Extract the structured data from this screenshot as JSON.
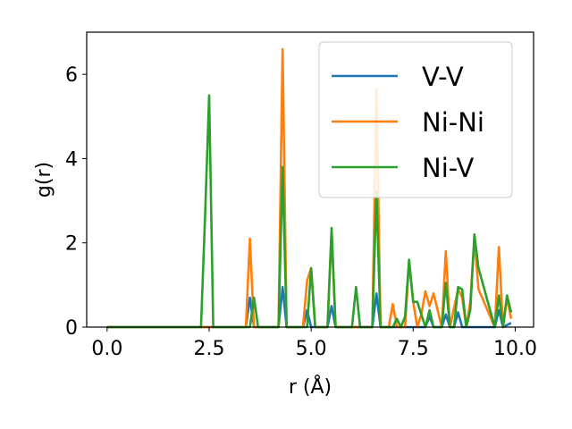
{
  "chart_data": {
    "type": "line",
    "title": "",
    "xlabel": "r (Å)",
    "ylabel": "g(r)",
    "xlim": [
      -0.5,
      10.45
    ],
    "ylim": [
      0,
      7.0
    ],
    "xticks": [
      0.0,
      2.5,
      5.0,
      7.5,
      10.0
    ],
    "xtick_labels": [
      "0.0",
      "2.5",
      "5.0",
      "7.5",
      "10.0"
    ],
    "yticks": [
      0,
      2,
      4,
      6
    ],
    "ytick_labels": [
      "0",
      "2",
      "4",
      "6"
    ],
    "grid": false,
    "legend": "top-right",
    "series": [
      {
        "name": "V-V",
        "color": "#1f77b4",
        "x": [
          0,
          3.4,
          3.5,
          3.6,
          4.2,
          4.3,
          4.4,
          4.8,
          4.9,
          5.0,
          5.4,
          5.5,
          5.6,
          6.5,
          6.6,
          6.7,
          7.8,
          7.9,
          8.0,
          8.2,
          8.3,
          8.4,
          8.5,
          8.6,
          8.7,
          9.5,
          9.6,
          9.7,
          9.9
        ],
        "y": [
          0,
          0,
          0.7,
          0,
          0,
          0.95,
          0,
          0,
          0.4,
          0,
          0,
          0.5,
          0,
          0,
          0.8,
          0,
          0,
          0.25,
          0,
          0,
          0.3,
          0,
          0,
          0.35,
          0,
          0,
          0.4,
          0,
          0.1
        ]
      },
      {
        "name": "Ni-Ni",
        "color": "#ff7f0e",
        "x": [
          0,
          3.4,
          3.5,
          3.6,
          4.2,
          4.3,
          4.4,
          4.8,
          4.9,
          5.0,
          5.1,
          5.4,
          5.5,
          5.6,
          6.5,
          6.6,
          6.7,
          6.9,
          7.0,
          7.1,
          7.3,
          7.4,
          7.5,
          7.6,
          7.7,
          7.8,
          7.9,
          8.0,
          8.2,
          8.3,
          8.4,
          8.6,
          8.7,
          8.8,
          8.9,
          9.0,
          9.1,
          9.5,
          9.6,
          9.7,
          9.8,
          9.9
        ],
        "y": [
          0,
          0,
          2.1,
          0,
          0,
          6.6,
          0,
          0,
          1.1,
          1.4,
          0,
          0,
          2.25,
          0,
          0,
          5.65,
          0,
          0,
          0.55,
          0,
          0,
          1.55,
          0.6,
          0,
          0.3,
          0.85,
          0.5,
          0.8,
          0,
          1.8,
          0,
          0.9,
          0.7,
          0,
          0.6,
          2.1,
          0.9,
          0,
          1.9,
          0,
          0.7,
          0.2
        ]
      },
      {
        "name": "Ni-V",
        "color": "#2ca02c",
        "x": [
          0,
          2.3,
          2.4,
          2.5,
          2.6,
          3.5,
          3.6,
          3.7,
          4.2,
          4.3,
          4.4,
          4.9,
          5.0,
          5.1,
          5.4,
          5.5,
          5.6,
          6.0,
          6.1,
          6.2,
          6.5,
          6.6,
          6.7,
          7.0,
          7.1,
          7.2,
          7.3,
          7.4,
          7.5,
          7.6,
          7.8,
          7.9,
          8.0,
          8.2,
          8.3,
          8.4,
          8.5,
          8.6,
          8.7,
          8.8,
          8.9,
          9.0,
          9.1,
          9.5,
          9.6,
          9.7,
          9.8,
          9.9
        ],
        "y": [
          0,
          0,
          2.6,
          5.5,
          0,
          0,
          0.7,
          0,
          0,
          3.8,
          0,
          0,
          1.4,
          0,
          0,
          2.35,
          0,
          0,
          0.95,
          0,
          0,
          3.2,
          0,
          0,
          0.2,
          0,
          0.25,
          1.6,
          0.6,
          0.6,
          0,
          0.4,
          0,
          0,
          1.05,
          0,
          0,
          0.95,
          0.9,
          0,
          0.4,
          2.2,
          1.4,
          0,
          0.75,
          0,
          0.75,
          0.35
        ]
      }
    ]
  }
}
